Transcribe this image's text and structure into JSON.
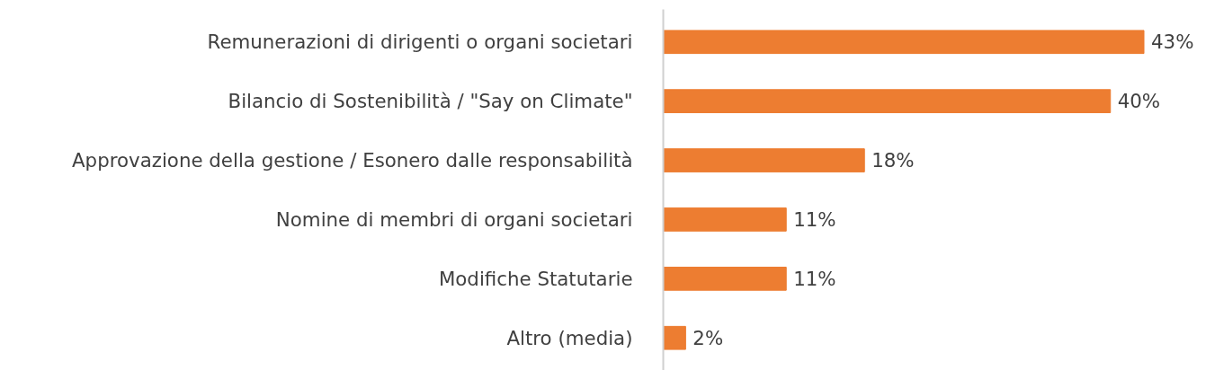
{
  "chart_data": {
    "type": "bar",
    "orientation": "horizontal",
    "color": "#ed7d31",
    "categories": [
      "Remunerazioni di dirigenti o organi societari",
      "Bilancio di Sostenibilità / \"Say on Climate\"",
      "Approvazione della gestione / Esonero dalle responsabilità",
      "Nomine di membri di organi societari",
      "Modifiche Statutarie",
      "Altro (media)"
    ],
    "values": [
      43,
      40,
      18,
      11,
      11,
      2
    ],
    "value_labels": [
      "43%",
      "40%",
      "18%",
      "11%",
      "11%",
      "2%"
    ],
    "grid": false
  }
}
